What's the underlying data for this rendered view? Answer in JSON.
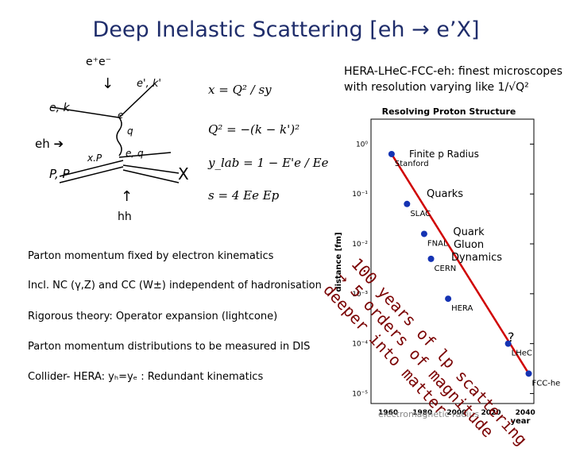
{
  "title": "Deep Inelastic Scattering [eh → e’X]",
  "diagram": {
    "ee_label": "e⁺e⁻",
    "down_arrow": "↓",
    "eh_label": "eh ➔",
    "up_arrow": "↑",
    "hh_label": "hh",
    "X_label": "X",
    "e_k": "e, k",
    "e_prime": "e', k'",
    "e_vertex": "e",
    "q_label": "q",
    "xP": "x.P",
    "eq": "e, q",
    "pP": "P, P"
  },
  "formulas": [
    {
      "lhs": "x =",
      "rhs": "Q² / sy"
    },
    {
      "lhs": "Q² =",
      "rhs": "−(k − k')²"
    },
    {
      "lhs": "y_lab =",
      "rhs": "1 − E'e / Ee"
    },
    {
      "lhs": "s =",
      "rhs": "4 Ee Ep"
    }
  ],
  "hera_text": {
    "line1": "HERA-LHeC-FCC-eh: finest microscopes",
    "line2": "with resolution varying like 1/√Q²"
  },
  "bullets": [
    "Parton momentum fixed by electron kinematics",
    "Incl. NC (γ,Z) and CC (W±) independent of hadronisation",
    "Rigorous theory: Operator expansion (lightcone)",
    "Parton momentum distributions to be measured in DIS",
    "Collider- HERA: yₕ=yₑ : Redundant kinematics"
  ],
  "chart_data": {
    "type": "scatter",
    "title": "Resolving Proton Structure",
    "xlabel": "year",
    "ylabel": "distance [fm]",
    "x_ticks": [
      "1960",
      "1980",
      "2000",
      "2020",
      "2040"
    ],
    "y_ticks": [
      "10⁰",
      "10⁻¹",
      "10⁻²",
      "10⁻³",
      "10⁻⁴",
      "10⁻⁵"
    ],
    "points": [
      {
        "label": "Stanford",
        "x": 1962,
        "y": -0.2
      },
      {
        "label": "SLAC",
        "x": 1971,
        "y": -1.2
      },
      {
        "label": "FNAL",
        "x": 1981,
        "y": -1.8
      },
      {
        "label": "CERN",
        "x": 1985,
        "y": -2.3
      },
      {
        "label": "HERA",
        "x": 1995,
        "y": -3.1
      },
      {
        "label": "LHeC",
        "x": 2030,
        "y": -4.0
      },
      {
        "label": "FCC-he",
        "x": 2042,
        "y": -4.6
      }
    ],
    "annotations": [
      {
        "text": "Finite p Radius"
      },
      {
        "text": "Quarks"
      },
      {
        "text": "Quark Gluon Dynamics"
      },
      {
        "text": "?"
      }
    ],
    "caption": "electromagnetic radius"
  },
  "rotated_text": {
    "line1": "100 years of lp scattering",
    "line2": "→ 5 orders of magnitude",
    "line3": "deeper into matter"
  }
}
